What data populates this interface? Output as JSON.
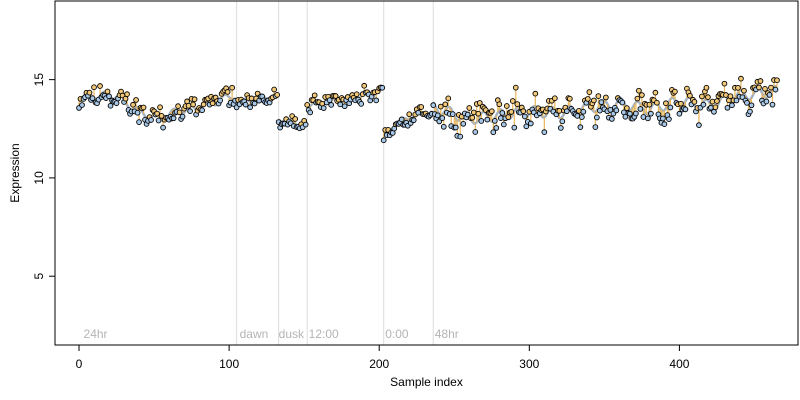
{
  "chart_data": {
    "type": "scatter",
    "xlabel": "Sample index",
    "ylabel": "Expression",
    "xlim": [
      -16,
      479
    ],
    "ylim": [
      1.5,
      19
    ],
    "x_ticks": [
      0,
      100,
      200,
      300,
      400
    ],
    "y_ticks": [
      5,
      10,
      15
    ],
    "grid": false,
    "segment_lines": [
      {
        "x": 105,
        "label": ""
      },
      {
        "x": 133,
        "label": ""
      },
      {
        "x": 152,
        "label": ""
      },
      {
        "x": 203,
        "label": ""
      },
      {
        "x": 236,
        "label": ""
      }
    ],
    "segment_labels": [
      {
        "x": 3,
        "label": "24hr"
      },
      {
        "x": 107,
        "label": "dawn"
      },
      {
        "x": 133,
        "label": "dusk"
      },
      {
        "x": 153,
        "label": "12:00"
      },
      {
        "x": 204,
        "label": "0:00"
      },
      {
        "x": 237,
        "label": "48hr"
      }
    ],
    "series": [
      {
        "point_color": "#a8c8e8",
        "fit_color": "#9fb2cc",
        "residual_color": "#e8b75a",
        "segments": [
          {
            "x0": 0,
            "x1": 104,
            "seed": 11,
            "anchors": [
              [
                0,
                14.1
              ],
              [
                10,
                14.2
              ],
              [
                25,
                14.2
              ],
              [
                35,
                13.6
              ],
              [
                45,
                13.2
              ],
              [
                55,
                13.0
              ],
              [
                65,
                13.4
              ],
              [
                75,
                13.5
              ],
              [
                85,
                13.7
              ],
              [
                95,
                14.0
              ],
              [
                104,
                14.2
              ]
            ],
            "noise": 0.55
          },
          {
            "x0": 105,
            "x1": 132,
            "seed": 23,
            "anchors": [
              [
                105,
                13.8
              ],
              [
                115,
                14.0
              ],
              [
                125,
                14.1
              ],
              [
                132,
                14.1
              ]
            ],
            "noise": 0.35
          },
          {
            "x0": 133,
            "x1": 151,
            "seed": 37,
            "anchors": [
              [
                133,
                13.0
              ],
              [
                140,
                12.8
              ],
              [
                151,
                12.7
              ]
            ],
            "noise": 0.3
          },
          {
            "x0": 152,
            "x1": 202,
            "seed": 41,
            "anchors": [
              [
                152,
                13.6
              ],
              [
                165,
                13.9
              ],
              [
                180,
                14.0
              ],
              [
                195,
                14.3
              ],
              [
                202,
                14.5
              ]
            ],
            "noise": 0.35
          },
          {
            "x0": 203,
            "x1": 235,
            "seed": 53,
            "anchors": [
              [
                203,
                12.2
              ],
              [
                210,
                12.7
              ],
              [
                220,
                13.1
              ],
              [
                235,
                13.4
              ]
            ],
            "noise": 0.4
          },
          {
            "x0": 236,
            "x1": 465,
            "seed": 67,
            "anchors": [
              [
                236,
                13.6
              ],
              [
                260,
                13.0
              ],
              [
                280,
                13.2
              ],
              [
                300,
                13.4
              ],
              [
                320,
                13.3
              ],
              [
                340,
                13.6
              ],
              [
                360,
                13.8
              ],
              [
                380,
                13.5
              ],
              [
                400,
                13.9
              ],
              [
                420,
                13.7
              ],
              [
                440,
                14.2
              ],
              [
                465,
                14.4
              ]
            ],
            "noise": 0.8
          }
        ]
      }
    ]
  }
}
